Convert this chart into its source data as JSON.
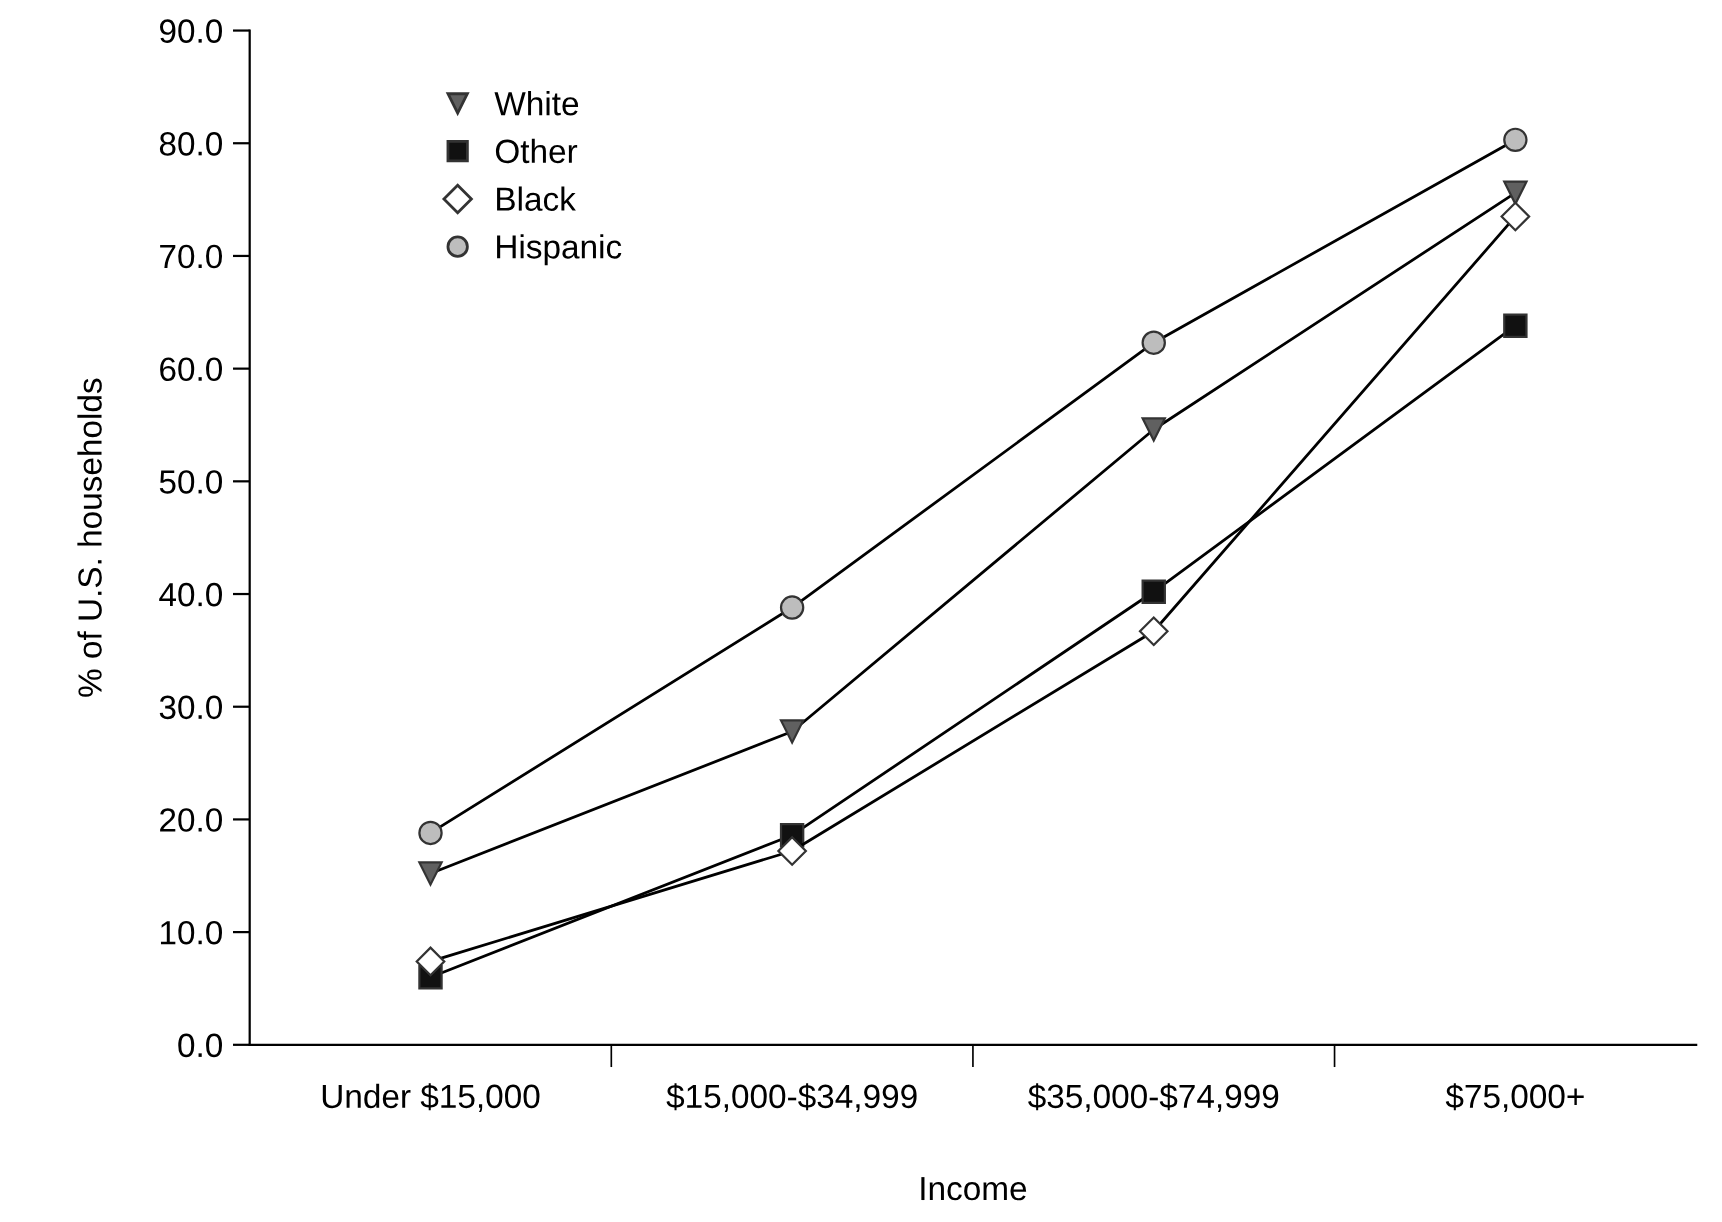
{
  "chart_data": {
    "type": "line",
    "xlabel": "Income",
    "ylabel": "% of U.S. households",
    "categories": [
      "Under $15,000",
      "$15,000-$34,999",
      "$35,000-$74,999",
      "$75,000+"
    ],
    "series": [
      {
        "name": "White",
        "color": "#606060",
        "marker": "triangle",
        "values": [
          15.2,
          27.8,
          54.6,
          75.6
        ]
      },
      {
        "name": "Other",
        "color": "#111111",
        "marker": "square",
        "values": [
          6.0,
          18.6,
          40.2,
          63.8
        ]
      },
      {
        "name": "Black",
        "color": "#ffffff",
        "marker": "diamond",
        "values": [
          7.4,
          17.2,
          36.7,
          73.5
        ]
      },
      {
        "name": "Hispanic",
        "color": "#bdbdbd",
        "marker": "circle",
        "values": [
          18.8,
          38.8,
          62.3,
          80.3
        ]
      }
    ],
    "ylim": [
      0,
      90
    ],
    "yticks": [
      {
        "value": 0,
        "label": "0.0"
      },
      {
        "value": 10,
        "label": "10.0"
      },
      {
        "value": 20,
        "label": "20.0"
      },
      {
        "value": 30,
        "label": "30.0"
      },
      {
        "value": 40,
        "label": "40.0"
      },
      {
        "value": 50,
        "label": "50.0"
      },
      {
        "value": 60,
        "label": "60.0"
      },
      {
        "value": 70,
        "label": "70.0"
      },
      {
        "value": 80,
        "label": "80.0"
      },
      {
        "value": 90,
        "label": "90.0"
      }
    ],
    "grid": false,
    "legend": "top left"
  }
}
